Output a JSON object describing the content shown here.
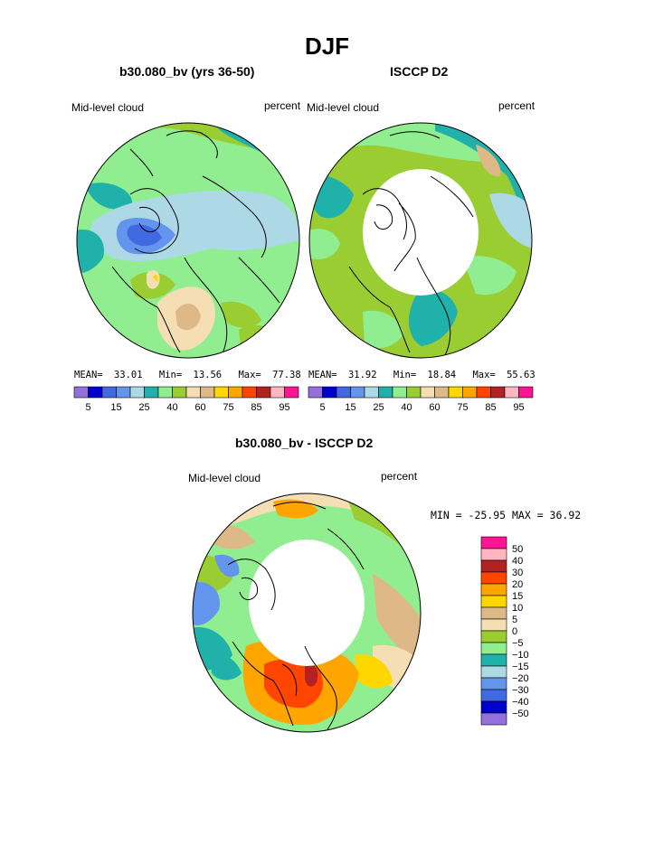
{
  "figure_title": "DJF",
  "panels": [
    {
      "title": "b30.080_bv (yrs 36-50)",
      "left_label": "Mid-level cloud",
      "right_label": "percent",
      "stats": {
        "mean_label": "MEAN=",
        "mean": "33.01",
        "min_label": "Min=",
        "min": "13.56",
        "max_label": "Max=",
        "max": "77.38"
      }
    },
    {
      "title": "ISCCP D2",
      "left_label": "Mid-level cloud",
      "right_label": "percent",
      "stats": {
        "mean_label": "MEAN=",
        "mean": "31.92",
        "min_label": "Min=",
        "min": "18.84",
        "max_label": "Max=",
        "max": "55.63"
      }
    },
    {
      "title": "b30.080_bv - ISCCP D2",
      "left_label": "Mid-level cloud",
      "right_label": "percent",
      "minmax": "MIN = -25.95  MAX =   36.92"
    }
  ],
  "colors": {
    "abs_bins": [
      "#9370db",
      "#0000cd",
      "#4169e1",
      "#6495ed",
      "#add8e6",
      "#20b2aa",
      "#90ee90",
      "#9acd32",
      "#f5deb3",
      "#deb887",
      "#ffd700",
      "#ffa500",
      "#ff4500",
      "#b22222",
      "#ffb6c1",
      "#ff1493"
    ],
    "diff_bins": [
      "#ff1493",
      "#ffb6c1",
      "#b22222",
      "#ff4500",
      "#ffa500",
      "#ffd700",
      "#deb887",
      "#f5deb3",
      "#9acd32",
      "#90ee90",
      "#20b2aa",
      "#add8e6",
      "#6495ed",
      "#4169e1",
      "#0000cd",
      "#9370db"
    ],
    "land_mask": "#ffffff",
    "coast": "#000000"
  },
  "chart_data": [
    {
      "type": "heatmap",
      "title": "b30.080_bv (yrs 36-50)",
      "field": "Mid-level cloud",
      "units": "percent",
      "mean": 33.01,
      "min": 13.56,
      "max": 77.38,
      "colorbar_levels": [
        5,
        10,
        15,
        20,
        25,
        30,
        40,
        50,
        60,
        65,
        75,
        80,
        85,
        90,
        95
      ],
      "colorbar_tick_labels": [
        "5",
        "15",
        "25",
        "40",
        "60",
        "75",
        "85",
        "95"
      ]
    },
    {
      "type": "heatmap",
      "title": "ISCCP D2",
      "field": "Mid-level cloud",
      "units": "percent",
      "mean": 31.92,
      "min": 18.84,
      "max": 55.63,
      "colorbar_levels": [
        5,
        10,
        15,
        20,
        25,
        30,
        40,
        50,
        60,
        65,
        75,
        80,
        85,
        90,
        95
      ],
      "colorbar_tick_labels": [
        "5",
        "15",
        "25",
        "40",
        "60",
        "75",
        "85",
        "95"
      ]
    },
    {
      "type": "heatmap",
      "title": "b30.080_bv - ISCCP D2",
      "field": "Mid-level cloud",
      "units": "percent",
      "min": -25.95,
      "max": 36.92,
      "colorbar_levels": [
        50,
        40,
        30,
        20,
        15,
        10,
        5,
        0,
        -5,
        -10,
        -15,
        -20,
        -30,
        -40,
        -50
      ],
      "colorbar_tick_labels": [
        "50",
        "40",
        "30",
        "20",
        "15",
        "10",
        "5",
        "0",
        "−5",
        "−10",
        "−15",
        "−20",
        "−30",
        "−40",
        "−50"
      ]
    }
  ]
}
